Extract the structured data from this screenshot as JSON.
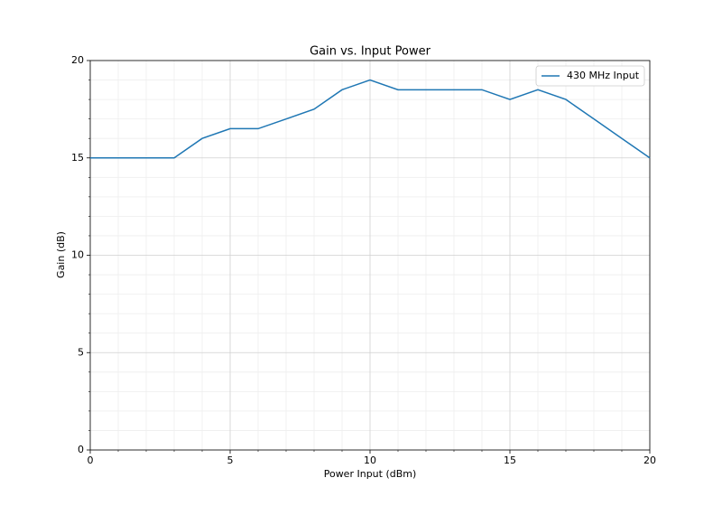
{
  "chart_data": {
    "type": "line",
    "title": "Gain vs. Input Power",
    "xlabel": "Power Input (dBm)",
    "ylabel": "Gain (dB)",
    "x": [
      0,
      1,
      2,
      3,
      4,
      5,
      6,
      7,
      8,
      9,
      10,
      11,
      12,
      13,
      14,
      15,
      16,
      17,
      18,
      19,
      20
    ],
    "series": [
      {
        "name": "430 MHz Input",
        "color": "#1f77b4",
        "values": [
          15,
          15,
          15,
          15,
          16,
          16.5,
          16.5,
          17,
          17.5,
          18.5,
          19,
          18.5,
          18.5,
          18.5,
          18.5,
          18,
          18.5,
          18,
          17,
          16,
          15
        ]
      }
    ],
    "xlim": [
      0,
      20
    ],
    "ylim": [
      0,
      20
    ],
    "xticks": [
      0,
      5,
      10,
      15,
      20
    ],
    "yticks": [
      0,
      5,
      10,
      15,
      20
    ],
    "xminorticks": [
      1,
      2,
      3,
      4,
      6,
      7,
      8,
      9,
      11,
      12,
      13,
      14,
      16,
      17,
      18,
      19
    ],
    "yminorticks": [
      1,
      2,
      3,
      4,
      6,
      7,
      8,
      9,
      11,
      12,
      13,
      14,
      16,
      17,
      18,
      19
    ],
    "grid": true,
    "legend": "upper right"
  }
}
